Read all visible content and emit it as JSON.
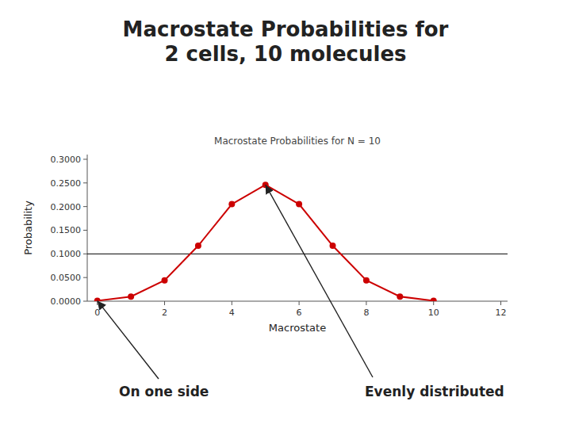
{
  "chart_data": {
    "type": "line",
    "title": "Macrostate Probabilities for\n2 cells, 10 molecules",
    "subtitle": "Macrostate Probabilities for N = 10",
    "x_label": "Macrostate",
    "y_label": "Probability",
    "x": [
      0,
      1,
      2,
      3,
      4,
      5,
      6,
      7,
      8,
      9,
      10
    ],
    "series": [
      {
        "color": "#cc0000",
        "marker": "circle",
        "values": [
          0.0009765625,
          0.009765625,
          0.04394531,
          0.1171875,
          0.2050781,
          0.24609375,
          0.2050781,
          0.1171875,
          0.04394531,
          0.009765625,
          0.0009765625
        ]
      }
    ],
    "xlim": [
      -0.3,
      12.2
    ],
    "ylim": [
      0.0,
      0.31
    ],
    "xticks": [
      0,
      2,
      4,
      6,
      8,
      10,
      12
    ],
    "yticks": [
      {
        "value": 0.0,
        "label": "0.0000"
      },
      {
        "value": 0.05,
        "label": "0.0500"
      },
      {
        "value": 0.1,
        "label": "0.1000"
      },
      {
        "value": 0.15,
        "label": "0.1500"
      },
      {
        "value": 0.2,
        "label": "0.2000"
      },
      {
        "value": 0.25,
        "label": "0.2500"
      },
      {
        "value": 0.3,
        "label": "0.3000"
      }
    ],
    "reference_line": 0.1,
    "annotations": [
      {
        "text": "On one side",
        "x": 0,
        "y": 0.001
      },
      {
        "text": "Evenly distributed",
        "x": 5,
        "y": 0.2461
      }
    ],
    "grid": false
  }
}
